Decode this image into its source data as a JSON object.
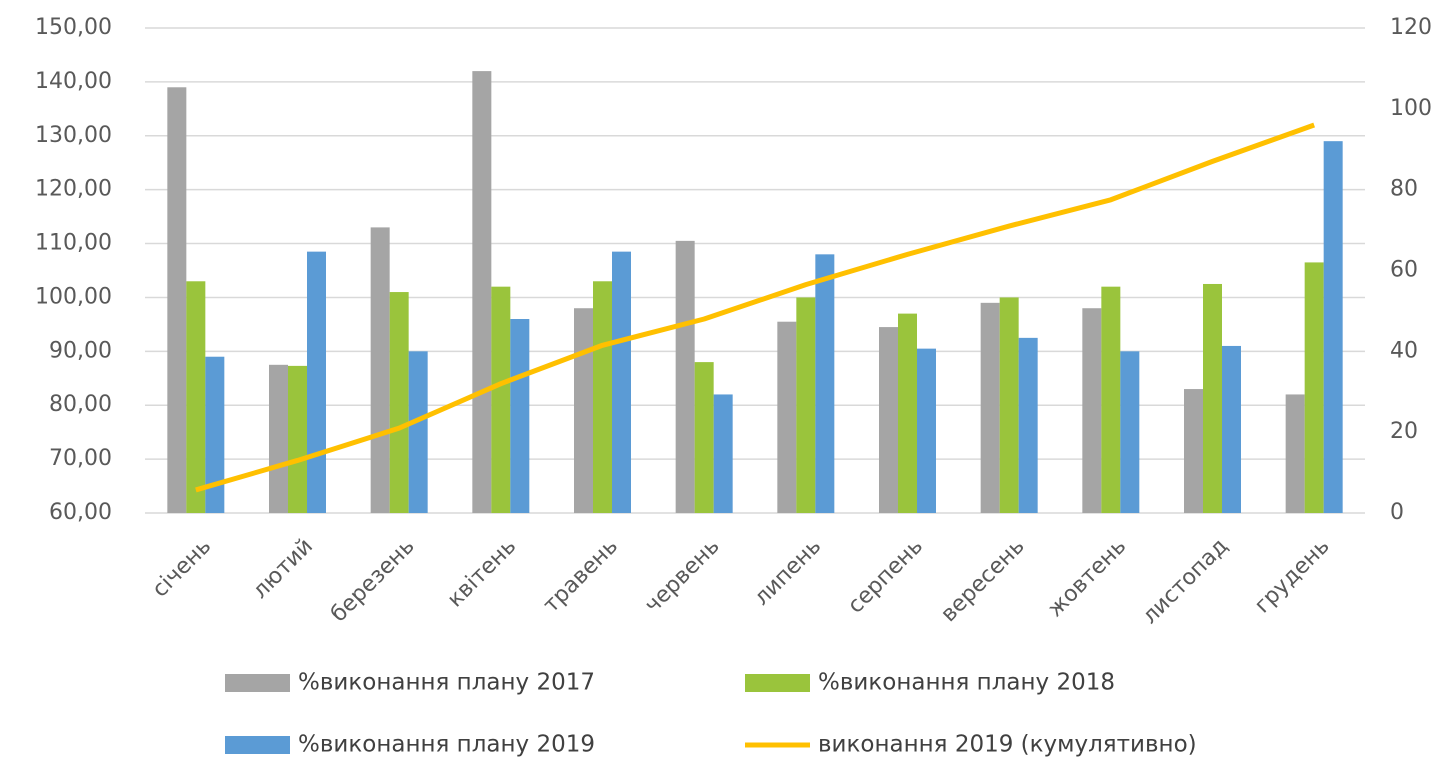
{
  "chart_data": {
    "type": "bar",
    "categories": [
      "січень",
      "лютий",
      "березень",
      "квітень",
      "травень",
      "червень",
      "липень",
      "серпень",
      "вересень",
      "жовтень",
      "листопад",
      "грудень"
    ],
    "series": [
      {
        "name": "%виконання плану 2017",
        "color": "#a5a5a5",
        "type": "bar",
        "values": [
          139,
          87.5,
          113,
          142,
          98,
          110.5,
          95.5,
          94.5,
          99,
          98,
          83,
          82
        ]
      },
      {
        "name": "%виконання плану 2018",
        "color": "#9ac43c",
        "type": "bar",
        "values": [
          103,
          87.3,
          101,
          102,
          103,
          88,
          100,
          97,
          100,
          102,
          102.5,
          106.5
        ]
      },
      {
        "name": "%виконання плану 2019",
        "color": "#5b9bd5",
        "type": "bar",
        "values": [
          89,
          108.5,
          90,
          96,
          108.5,
          82,
          108,
          90.5,
          92.5,
          90,
          91,
          129
        ]
      },
      {
        "name": "виконання 2019 (кумулятивно)",
        "color": "#ffc000",
        "type": "line",
        "axis": "y2",
        "values": [
          5.7,
          13,
          21,
          32,
          41.5,
          48,
          56.5,
          64,
          71,
          77.5,
          87,
          96
        ]
      }
    ],
    "ylim": [
      60,
      150
    ],
    "yticks": [
      {
        "value": 60,
        "label": "60,00"
      },
      {
        "value": 70,
        "label": "70,00"
      },
      {
        "value": 80,
        "label": "80,00"
      },
      {
        "value": 90,
        "label": "90,00"
      },
      {
        "value": 100,
        "label": "100,00"
      },
      {
        "value": 110,
        "label": "110,00"
      },
      {
        "value": 120,
        "label": "120,00"
      },
      {
        "value": 130,
        "label": "130,00"
      },
      {
        "value": 140,
        "label": "140,00"
      },
      {
        "value": 150,
        "label": "150,00"
      }
    ],
    "y2lim": [
      0,
      120
    ],
    "y2ticks": [
      0,
      20,
      40,
      60,
      80,
      100,
      120
    ],
    "grid": true,
    "legend": "bottom"
  }
}
